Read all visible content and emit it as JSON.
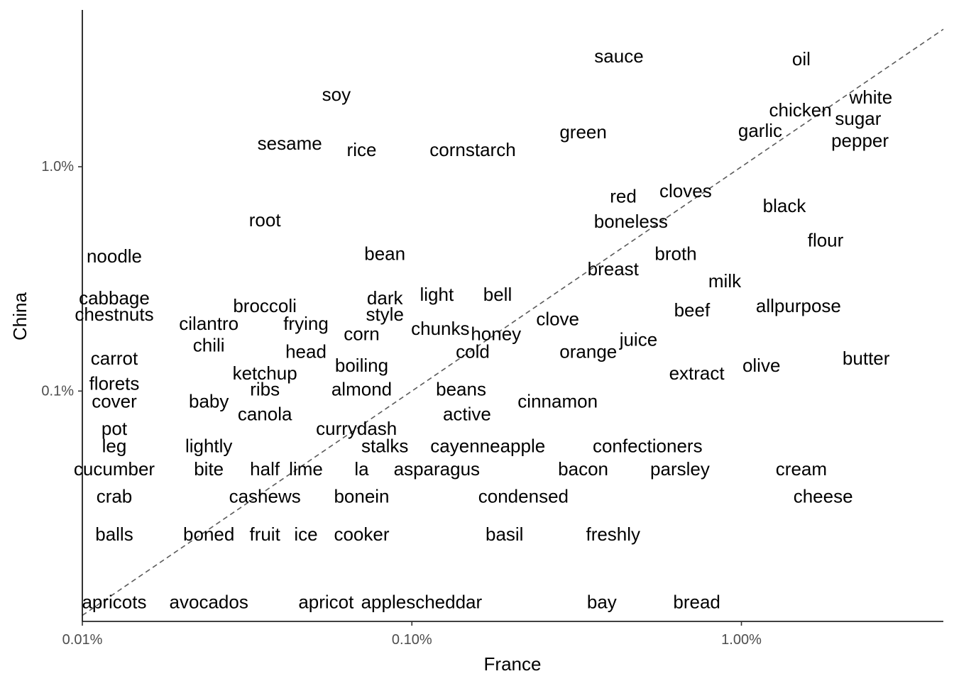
{
  "chart_data": {
    "type": "scatter",
    "xlabel": "France",
    "ylabel": "China",
    "x_scale": "log10",
    "y_scale": "log10",
    "xlim": [
      0.0001,
      0.041
    ],
    "ylim": [
      9.4e-05,
      0.05
    ],
    "x_ticks": [
      {
        "value": 0.0001,
        "label": "0.01%"
      },
      {
        "value": 0.001,
        "label": "0.10%"
      },
      {
        "value": 0.01,
        "label": "1.00%"
      }
    ],
    "y_ticks": [
      {
        "value": 0.001,
        "label": "0.1%"
      },
      {
        "value": 0.01,
        "label": "1.0%"
      }
    ],
    "reference_line": "y = x (dashed)",
    "points": [
      {
        "label": "sauce",
        "x": 0.00425,
        "y": 0.0311
      },
      {
        "label": "oil",
        "x": 0.0152,
        "y": 0.0303
      },
      {
        "label": "soy",
        "x": 0.00059,
        "y": 0.021
      },
      {
        "label": "chicken",
        "x": 0.0151,
        "y": 0.0179
      },
      {
        "label": "white",
        "x": 0.0247,
        "y": 0.0204
      },
      {
        "label": "sugar",
        "x": 0.0226,
        "y": 0.0164
      },
      {
        "label": "garlic",
        "x": 0.0114,
        "y": 0.0145
      },
      {
        "label": "green",
        "x": 0.00331,
        "y": 0.0143
      },
      {
        "label": "pepper",
        "x": 0.0229,
        "y": 0.0131
      },
      {
        "label": "sesame",
        "x": 0.000426,
        "y": 0.0127
      },
      {
        "label": "rice",
        "x": 0.000704,
        "y": 0.0119
      },
      {
        "label": "cornstarch",
        "x": 0.00153,
        "y": 0.0119
      },
      {
        "label": "red",
        "x": 0.00438,
        "y": 0.0074
      },
      {
        "label": "cloves",
        "x": 0.00677,
        "y": 0.0078
      },
      {
        "label": "black",
        "x": 0.0135,
        "y": 0.0067
      },
      {
        "label": "boneless",
        "x": 0.00462,
        "y": 0.0057
      },
      {
        "label": "root",
        "x": 0.000358,
        "y": 0.0058
      },
      {
        "label": "flour",
        "x": 0.018,
        "y": 0.0047
      },
      {
        "label": "noodle",
        "x": 0.000125,
        "y": 0.004
      },
      {
        "label": "bean",
        "x": 0.000828,
        "y": 0.0041
      },
      {
        "label": "broth",
        "x": 0.00632,
        "y": 0.0041
      },
      {
        "label": "breast",
        "x": 0.00408,
        "y": 0.0035
      },
      {
        "label": "milk",
        "x": 0.0089,
        "y": 0.0031
      },
      {
        "label": "cabbage",
        "x": 0.000125,
        "y": 0.0026
      },
      {
        "label": "dark",
        "x": 0.000828,
        "y": 0.0026
      },
      {
        "label": "light",
        "x": 0.00119,
        "y": 0.0027
      },
      {
        "label": "bell",
        "x": 0.00182,
        "y": 0.0027
      },
      {
        "label": "broccoli",
        "x": 0.000358,
        "y": 0.0024
      },
      {
        "label": "beef",
        "x": 0.00708,
        "y": 0.0023
      },
      {
        "label": "allpurpose",
        "x": 0.0149,
        "y": 0.0024
      },
      {
        "label": "chestnuts",
        "x": 0.000125,
        "y": 0.0022
      },
      {
        "label": "style",
        "x": 0.000828,
        "y": 0.0022
      },
      {
        "label": "clove",
        "x": 0.00277,
        "y": 0.0021
      },
      {
        "label": "cilantro",
        "x": 0.000242,
        "y": 0.002
      },
      {
        "label": "frying",
        "x": 0.000477,
        "y": 0.002
      },
      {
        "label": "chunks",
        "x": 0.00122,
        "y": 0.0019
      },
      {
        "label": "corn",
        "x": 0.000704,
        "y": 0.0018
      },
      {
        "label": "honey",
        "x": 0.0018,
        "y": 0.0018
      },
      {
        "label": "juice",
        "x": 0.00487,
        "y": 0.0017
      },
      {
        "label": "chili",
        "x": 0.000242,
        "y": 0.0016
      },
      {
        "label": "head",
        "x": 0.000477,
        "y": 0.0015
      },
      {
        "label": "cold",
        "x": 0.00153,
        "y": 0.0015
      },
      {
        "label": "orange",
        "x": 0.00343,
        "y": 0.0015
      },
      {
        "label": "carrot",
        "x": 0.000125,
        "y": 0.0014
      },
      {
        "label": "butter",
        "x": 0.0239,
        "y": 0.0014
      },
      {
        "label": "boiling",
        "x": 0.000704,
        "y": 0.0013
      },
      {
        "label": "olive",
        "x": 0.0115,
        "y": 0.0013
      },
      {
        "label": "ketchup",
        "x": 0.000358,
        "y": 0.0012
      },
      {
        "label": "extract",
        "x": 0.00732,
        "y": 0.0012
      },
      {
        "label": "florets",
        "x": 0.000125,
        "y": 0.00108
      },
      {
        "label": "ribs",
        "x": 0.000358,
        "y": 0.00102
      },
      {
        "label": "almond",
        "x": 0.000704,
        "y": 0.00102
      },
      {
        "label": "beans",
        "x": 0.00141,
        "y": 0.00102
      },
      {
        "label": "cover",
        "x": 0.000125,
        "y": 0.0009
      },
      {
        "label": "baby",
        "x": 0.000242,
        "y": 0.0009
      },
      {
        "label": "cinnamon",
        "x": 0.00277,
        "y": 0.0009
      },
      {
        "label": "canola",
        "x": 0.000358,
        "y": 0.00079
      },
      {
        "label": "active",
        "x": 0.00147,
        "y": 0.00079
      },
      {
        "label": "pot",
        "x": 0.000125,
        "y": 0.00068
      },
      {
        "label": "currydash",
        "x": 0.000679,
        "y": 0.00068
      },
      {
        "label": "leg",
        "x": 0.000125,
        "y": 0.00057
      },
      {
        "label": "lightly",
        "x": 0.000242,
        "y": 0.00057
      },
      {
        "label": "stalks",
        "x": 0.000828,
        "y": 0.00057
      },
      {
        "label": "cayenneapple",
        "x": 0.0017,
        "y": 0.00057
      },
      {
        "label": "confectioners",
        "x": 0.00519,
        "y": 0.00057
      },
      {
        "label": "cucumber",
        "x": 0.000125,
        "y": 0.00045
      },
      {
        "label": "bite",
        "x": 0.000242,
        "y": 0.00045
      },
      {
        "label": "half",
        "x": 0.000358,
        "y": 0.00045
      },
      {
        "label": "lime",
        "x": 0.000477,
        "y": 0.00045
      },
      {
        "label": "la",
        "x": 0.000704,
        "y": 0.00045
      },
      {
        "label": "asparagus",
        "x": 0.00119,
        "y": 0.00045
      },
      {
        "label": "bacon",
        "x": 0.00331,
        "y": 0.00045
      },
      {
        "label": "parsley",
        "x": 0.00651,
        "y": 0.00045
      },
      {
        "label": "cream",
        "x": 0.0152,
        "y": 0.00045
      },
      {
        "label": "crab",
        "x": 0.000125,
        "y": 0.00034
      },
      {
        "label": "cashews",
        "x": 0.000358,
        "y": 0.00034
      },
      {
        "label": "bonein",
        "x": 0.000704,
        "y": 0.00034
      },
      {
        "label": "condensed",
        "x": 0.00218,
        "y": 0.00034
      },
      {
        "label": "cheese",
        "x": 0.0177,
        "y": 0.00034
      },
      {
        "label": "balls",
        "x": 0.000125,
        "y": 0.00023
      },
      {
        "label": "boned",
        "x": 0.000242,
        "y": 0.00023
      },
      {
        "label": "fruit",
        "x": 0.000358,
        "y": 0.00023
      },
      {
        "label": "ice",
        "x": 0.000477,
        "y": 0.00023
      },
      {
        "label": "cooker",
        "x": 0.000704,
        "y": 0.00023
      },
      {
        "label": "basil",
        "x": 0.00191,
        "y": 0.00023
      },
      {
        "label": "freshly",
        "x": 0.00408,
        "y": 0.00023
      },
      {
        "label": "apricots",
        "x": 0.000125,
        "y": 0.000115
      },
      {
        "label": "avocados",
        "x": 0.000242,
        "y": 0.000115
      },
      {
        "label": "apricot",
        "x": 0.000549,
        "y": 0.000115
      },
      {
        "label": "applescheddar",
        "x": 0.00107,
        "y": 0.000115
      },
      {
        "label": "bay",
        "x": 0.00377,
        "y": 0.000115
      },
      {
        "label": "bread",
        "x": 0.00732,
        "y": 0.000115
      }
    ]
  }
}
